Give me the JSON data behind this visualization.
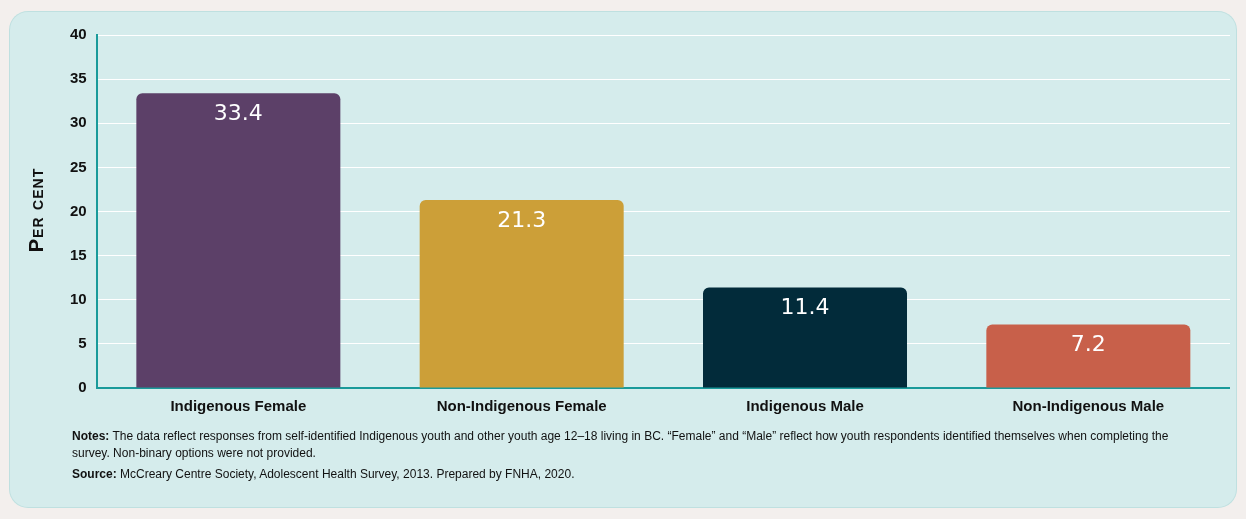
{
  "chart_data": {
    "type": "bar",
    "ylabel": "Per cent",
    "categories": [
      "Indigenous Female",
      "Non-Indigenous Female",
      "Indigenous Male",
      "Non-Indigenous Male"
    ],
    "values": [
      33.4,
      21.3,
      11.4,
      7.2
    ],
    "colors": [
      "#5c4068",
      "#cc9f38",
      "#022b3a",
      "#c8604a"
    ],
    "ylim": [
      0,
      40
    ],
    "yticks": [
      0,
      5,
      10,
      15,
      20,
      25,
      30,
      35,
      40
    ],
    "grid": "y",
    "data_labels": true,
    "annotations": [
      "Notes: The data reflect responses from self-identified Indigenous youth and other youth age 12–18 living in BC. “Female” and “Male” reflect how youth respondents identified themselves when completing the survey. Non-binary options were not provided.",
      "Source: McCreary Centre Society, Adolescent Health Survey, 2013.  Prepared by FNHA, 2020."
    ]
  }
}
